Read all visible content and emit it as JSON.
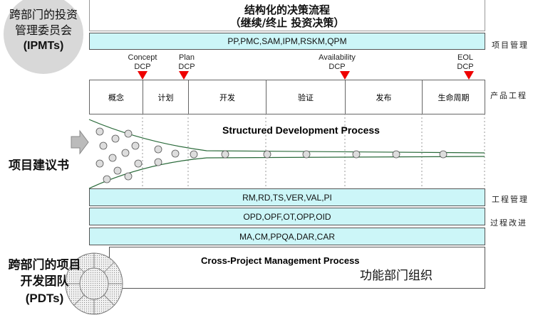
{
  "ipmt": {
    "line1": "跨部门的投资",
    "line2": "管理委员会",
    "line3": "(IPMTs)"
  },
  "decision": {
    "title": "结构化的决策流程",
    "subtitle": "（继续/终止 投资决策）"
  },
  "pm_bar": {
    "text": "PP,PMC,SAM,IPM,RSKM,QPM",
    "label": "项目管理"
  },
  "dcps": [
    {
      "l1": "Concept",
      "l2": "DCP"
    },
    {
      "l1": "Plan",
      "l2": "DCP"
    },
    {
      "l1": "Availability",
      "l2": "DCP"
    },
    {
      "l1": "EOL",
      "l2": "DCP"
    }
  ],
  "phases": [
    "概念",
    "计划",
    "开发",
    "验证",
    "发布",
    "生命周期"
  ],
  "phase_label": "产品工程",
  "funnel": {
    "title": "Structured Development Process",
    "input_label": "项目建议书"
  },
  "bars": [
    {
      "text": "RM,RD,TS,VER,VAL,PI",
      "label": "工程管理"
    },
    {
      "text": "OPD,OPF,OT,OPP,OID",
      "label": "过程改进"
    },
    {
      "text": "MA,CM,PPQA,DAR,CAR",
      "label": ""
    }
  ],
  "cross": {
    "title": "Cross-Project Management Process",
    "subtitle": "功能部门组织"
  },
  "pdt": {
    "line1": "跨部门的项目",
    "line2": "开发团队",
    "line3": "(PDTs)"
  },
  "colors": {
    "cyan": "#ccf6f8",
    "triangle": "#e00000"
  }
}
